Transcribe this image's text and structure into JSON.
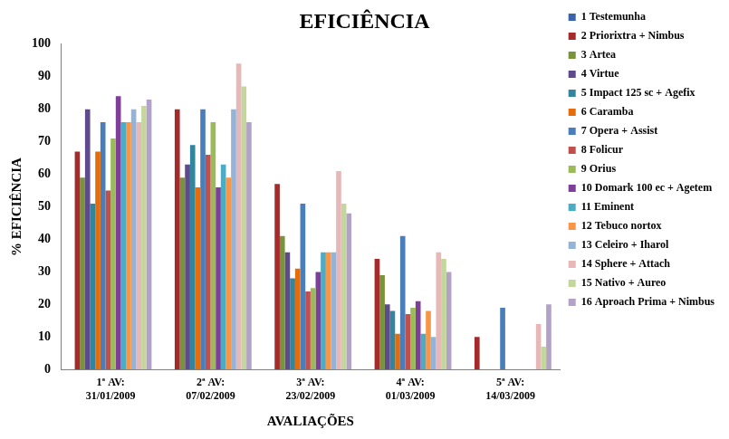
{
  "chart_data": {
    "type": "bar",
    "title": "EFICIÊNCIA",
    "x_label": "AVALIAÇÕES",
    "y_label": "% EFICIÊNCIA",
    "categories": [
      "1ª AV: 31/01/2009",
      "2ª AV: 07/02/2009",
      "3ª AV: 23/02/2009",
      "4ª AV: 01/03/2009",
      "5ª AV: 14/03/2009"
    ],
    "series": [
      {
        "name": "1 Testemunha",
        "color": "#3A64A8",
        "values": [
          0,
          0,
          0,
          0,
          0
        ]
      },
      {
        "name": "2 Priorixtra + Nimbus",
        "color": "#A52A2A",
        "values": [
          67,
          80,
          57,
          34,
          10
        ]
      },
      {
        "name": "3 Artea",
        "color": "#77933C",
        "values": [
          59,
          59,
          41,
          29,
          0
        ]
      },
      {
        "name": "4 Virtue",
        "color": "#5F4B8B",
        "values": [
          80,
          63,
          36,
          20,
          0
        ]
      },
      {
        "name": "5 Impact 125 sc + Agefix",
        "color": "#31859C",
        "values": [
          51,
          69,
          28,
          18,
          0
        ]
      },
      {
        "name": "6 Caramba",
        "color": "#E46C0A",
        "values": [
          67,
          56,
          31,
          11,
          0
        ]
      },
      {
        "name": "7 Opera + Assist",
        "color": "#4A7EBB",
        "values": [
          76,
          80,
          51,
          41,
          19
        ]
      },
      {
        "name": "8 Folicur",
        "color": "#C0504D",
        "values": [
          55,
          66,
          24,
          17,
          0
        ]
      },
      {
        "name": "9 Orius",
        "color": "#9BBB59",
        "values": [
          71,
          76,
          25,
          19,
          0
        ]
      },
      {
        "name": "10 Domark 100 ec + Agetem",
        "color": "#7F3F98",
        "values": [
          84,
          56,
          30,
          21,
          0
        ]
      },
      {
        "name": "11 Eminent",
        "color": "#4BACC6",
        "values": [
          76,
          63,
          36,
          11,
          0
        ]
      },
      {
        "name": "12 Tebuco nortox",
        "color": "#F79646",
        "values": [
          76,
          59,
          36,
          18,
          0
        ]
      },
      {
        "name": "13 Celeiro + Iharol",
        "color": "#95B3D7",
        "values": [
          80,
          80,
          36,
          10,
          0
        ]
      },
      {
        "name": "14 Sphere + Attach",
        "color": "#E6B9B8",
        "values": [
          76,
          94,
          61,
          36,
          14
        ]
      },
      {
        "name": "15 Nativo + Aureo",
        "color": "#C3D69B",
        "values": [
          81,
          87,
          51,
          34,
          7
        ]
      },
      {
        "name": "16 Aproach Prima + Nimbus",
        "color": "#B3A2C7",
        "values": [
          83,
          76,
          48,
          30,
          20
        ]
      }
    ],
    "ylim": [
      0,
      100
    ],
    "yticks": [
      0,
      10,
      20,
      30,
      40,
      50,
      60,
      70,
      80,
      90,
      100
    ],
    "grid": false,
    "legend": "right"
  }
}
